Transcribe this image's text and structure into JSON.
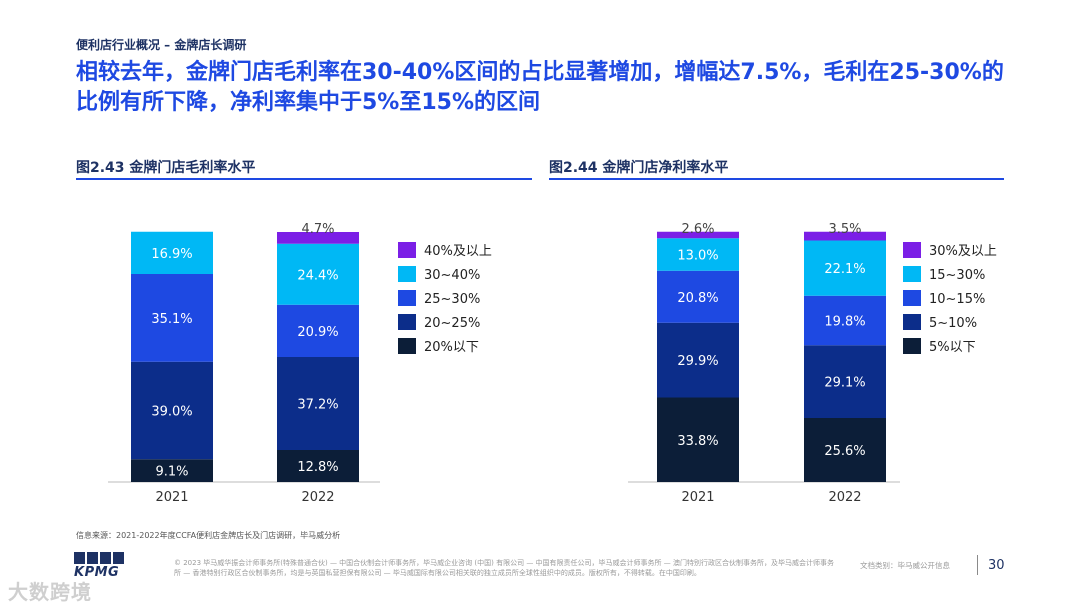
{
  "header": {
    "breadcrumb": "便利店行业概况 – 金牌店长调研",
    "headline": "相较去年，金牌门店毛利率在30-40%区间的占比显著增加，增幅达7.5%，毛利在25-30%的比例有所下降，净利率集中于5%至15%的区间"
  },
  "colors": {
    "accent": "#1e49e2",
    "navy": "#1e3264",
    "purple": "#7b1fe6",
    "cyan": "#00b8f5",
    "blue": "#1e49e2",
    "darkblue": "#0c2d8a",
    "darkest": "#0c1e38"
  },
  "chart_data": [
    {
      "type": "bar",
      "stacked": true,
      "title": "图2.43 金牌门店毛利率水平",
      "categories": [
        "2021",
        "2022"
      ],
      "series": [
        {
          "name": "20%以下",
          "values": [
            9.1,
            12.8
          ],
          "labels": [
            "9.1%",
            "12.8%"
          ],
          "color": "#0c1e38"
        },
        {
          "name": "20~25%",
          "values": [
            39.0,
            37.2
          ],
          "labels": [
            "39.0%",
            "37.2%"
          ],
          "color": "#0c2d8a"
        },
        {
          "name": "25~30%",
          "values": [
            35.1,
            20.9
          ],
          "labels": [
            "35.1%",
            "20.9%"
          ],
          "color": "#1e49e2"
        },
        {
          "name": "30~40%",
          "values": [
            16.9,
            24.4
          ],
          "labels": [
            "16.9%",
            "24.4%"
          ],
          "color": "#00b8f5"
        },
        {
          "name": "40%及以上",
          "values": [
            0,
            4.7
          ],
          "labels": [
            "",
            "4.7%"
          ],
          "color": "#7b1fe6"
        }
      ],
      "ylim": [
        0,
        100
      ]
    },
    {
      "type": "bar",
      "stacked": true,
      "title": "图2.44 金牌门店净利率水平",
      "categories": [
        "2021",
        "2022"
      ],
      "series": [
        {
          "name": "5%以下",
          "values": [
            33.8,
            25.6
          ],
          "labels": [
            "33.8%",
            "25.6%"
          ],
          "color": "#0c1e38"
        },
        {
          "name": "5~10%",
          "values": [
            29.9,
            29.1
          ],
          "labels": [
            "29.9%",
            "29.1%"
          ],
          "color": "#0c2d8a"
        },
        {
          "name": "10~15%",
          "values": [
            20.8,
            19.8
          ],
          "labels": [
            "20.8%",
            "19.8%"
          ],
          "color": "#1e49e2"
        },
        {
          "name": "15~30%",
          "values": [
            13.0,
            22.1
          ],
          "labels": [
            "13.0%",
            "22.1%"
          ],
          "color": "#00b8f5"
        },
        {
          "name": "30%及以上",
          "values": [
            2.6,
            3.5
          ],
          "labels": [
            "2.6%",
            "3.5%"
          ],
          "color": "#7b1fe6"
        }
      ],
      "ylim": [
        0,
        100
      ]
    }
  ],
  "footer": {
    "source": "信息来源：2021-2022年度CCFA便利店金牌店长及门店调研，毕马威分析",
    "legal": "© 2023 毕马威华振会计师事务所(特殊普通合伙) — 中国合伙制会计师事务所，毕马威企业咨询 (中国) 有限公司 — 中国有限责任公司，毕马威会计师事务所 — 澳门特别行政区合伙制事务所，及毕马威会计师事务所 — 香港特别行政区合伙制事务所，均是与英国私营担保有限公司 — 毕马威国际有限公司相关联的独立成员所全球性组织中的成员。版权所有，不得转载。在中国印刷。",
    "doc_type": "文档类别：毕马威公开信息",
    "page_number": "30",
    "logo_text": "KPMG",
    "watermark": "大数跨境"
  }
}
